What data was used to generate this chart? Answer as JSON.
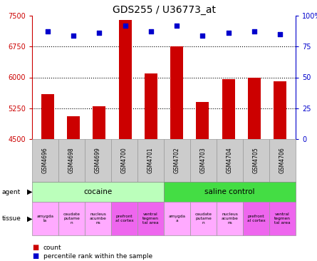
{
  "title": "GDS255 / U36773_at",
  "samples": [
    "GSM4696",
    "GSM4698",
    "GSM4699",
    "GSM4700",
    "GSM4701",
    "GSM4702",
    "GSM4703",
    "GSM4704",
    "GSM4705",
    "GSM4706"
  ],
  "counts": [
    5600,
    5050,
    5300,
    7400,
    6100,
    6750,
    5400,
    5950,
    6000,
    5900
  ],
  "percentiles": [
    87,
    84,
    86,
    92,
    87,
    92,
    84,
    86,
    87,
    85
  ],
  "ylim_left": [
    4500,
    7500
  ],
  "ylim_right": [
    0,
    100
  ],
  "yticks_left": [
    4500,
    5250,
    6000,
    6750,
    7500
  ],
  "yticks_right": [
    0,
    25,
    50,
    75,
    100
  ],
  "ytick_labels_left": [
    "4500",
    "5250",
    "6000",
    "6750",
    "7500"
  ],
  "ytick_labels_right": [
    "0",
    "25",
    "50",
    "75",
    "100%"
  ],
  "bar_color": "#cc0000",
  "dot_color": "#0000cc",
  "agent_groups": [
    {
      "label": "cocaine",
      "start": 0,
      "end": 5,
      "color": "#bbffbb"
    },
    {
      "label": "saline control",
      "start": 5,
      "end": 10,
      "color": "#44dd44"
    }
  ],
  "tissue_colors_light": "#ffaaff",
  "tissue_colors_dark": "#ee66ee",
  "tissue_groups": [
    {
      "label": "amygda\nla",
      "idx": 0,
      "dark": false
    },
    {
      "label": "caudate\nputame\nn",
      "idx": 1,
      "dark": false
    },
    {
      "label": "nucleus\nacumbe\nns",
      "idx": 2,
      "dark": false
    },
    {
      "label": "prefront\nal cortex",
      "idx": 3,
      "dark": true
    },
    {
      "label": "ventral\ntegmen\ntal area",
      "idx": 4,
      "dark": true
    },
    {
      "label": "amygda\na",
      "idx": 5,
      "dark": false
    },
    {
      "label": "caudate\nputame\nn",
      "idx": 6,
      "dark": false
    },
    {
      "label": "nucleus\nacumbe\nns",
      "idx": 7,
      "dark": false
    },
    {
      "label": "prefront\nal cortex",
      "idx": 8,
      "dark": true
    },
    {
      "label": "ventral\ntegmen\ntal area",
      "idx": 9,
      "dark": true
    }
  ],
  "grid_values": [
    5250,
    6000,
    6750
  ],
  "bar_width": 0.5,
  "left_axis_color": "#cc0000",
  "right_axis_color": "#0000cc",
  "sample_box_color": "#cccccc",
  "sample_box_edge": "#999999"
}
